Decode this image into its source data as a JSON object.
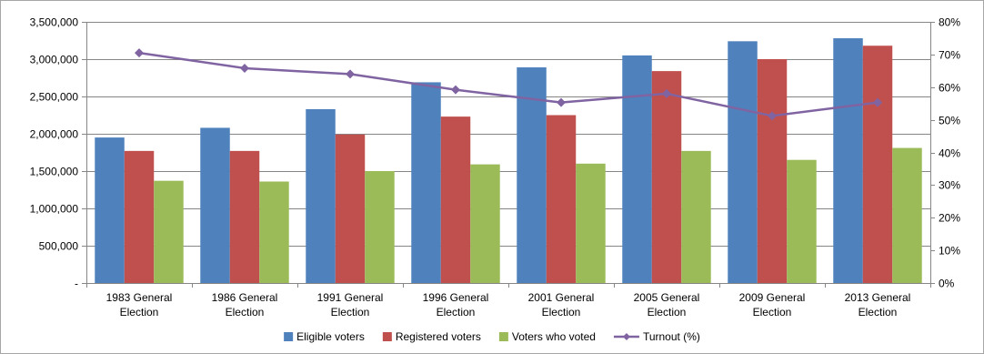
{
  "chart_data": {
    "type": "bar",
    "categories": [
      [
        "1983 General",
        "Election"
      ],
      [
        "1986 General",
        "Election"
      ],
      [
        "1991 General",
        "Election"
      ],
      [
        "1996 General",
        "Election"
      ],
      [
        "2001 General",
        "Election"
      ],
      [
        "2005 General",
        "Election"
      ],
      [
        "2009 General",
        "Election"
      ],
      [
        "2013 General",
        "Election"
      ]
    ],
    "series": [
      {
        "name": "Eligible voters",
        "type": "bar",
        "axis": "left",
        "color": "#4F81BD",
        "values": [
          1950000,
          2080000,
          2330000,
          2690000,
          2890000,
          3050000,
          3240000,
          3280000
        ]
      },
      {
        "name": "Registered voters",
        "type": "bar",
        "axis": "left",
        "color": "#C0504D",
        "values": [
          1770000,
          1770000,
          1990000,
          2230000,
          2250000,
          2840000,
          3000000,
          3180000
        ]
      },
      {
        "name": "Voters who voted",
        "type": "bar",
        "axis": "left",
        "color": "#9BBB59",
        "values": [
          1370000,
          1360000,
          1500000,
          1590000,
          1600000,
          1770000,
          1650000,
          1810000
        ]
      },
      {
        "name": "Turnout (%)",
        "type": "line",
        "axis": "right",
        "color": "#8064A2",
        "values": [
          70.5,
          65.8,
          64.0,
          59.2,
          55.3,
          58.0,
          51.2,
          55.3
        ]
      }
    ],
    "y_left": {
      "ylim": [
        0,
        3500000
      ],
      "ticks": [
        0,
        500000,
        1000000,
        1500000,
        2000000,
        2500000,
        3000000,
        3500000
      ],
      "tick_labels": [
        "-",
        "500,000",
        "1,000,000",
        "1,500,000",
        "2,000,000",
        "2,500,000",
        "3,000,000",
        "3,500,000"
      ]
    },
    "y_right": {
      "ylim": [
        0,
        80
      ],
      "ticks": [
        0,
        10,
        20,
        30,
        40,
        50,
        60,
        70,
        80
      ],
      "tick_labels": [
        "0%",
        "10%",
        "20%",
        "30%",
        "40%",
        "50%",
        "60%",
        "70%",
        "80%"
      ]
    },
    "grid": true,
    "legend_position": "bottom",
    "title": "",
    "xlabel": "",
    "ylabel": ""
  }
}
